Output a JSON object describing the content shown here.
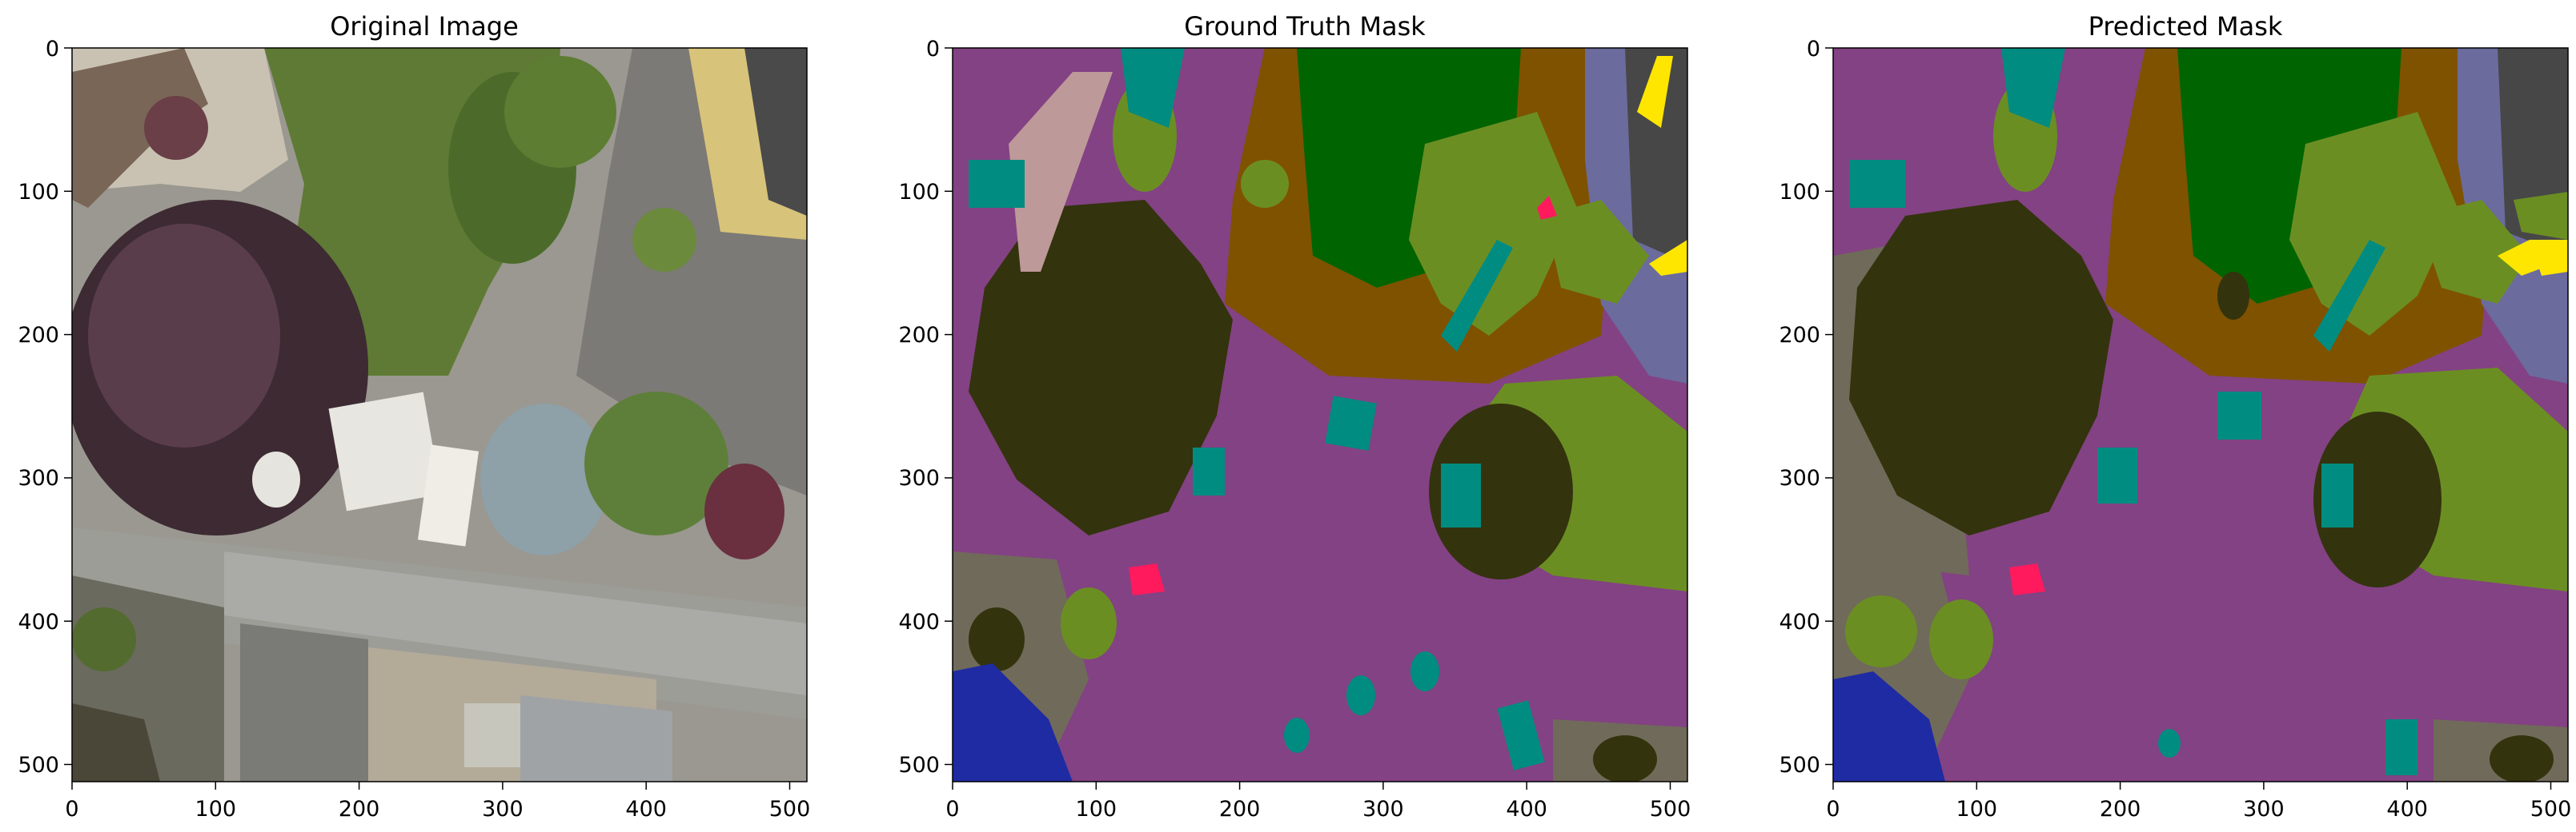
{
  "panels": [
    {
      "title": "Original Image"
    },
    {
      "title": "Ground Truth Mask"
    },
    {
      "title": "Predicted Mask"
    }
  ],
  "axes": {
    "x_ticks": [
      "0",
      "100",
      "200",
      "300",
      "400",
      "500"
    ],
    "y_ticks": [
      "0",
      "100",
      "200",
      "300",
      "400",
      "500"
    ],
    "x_tick_values": [
      0,
      100,
      200,
      300,
      400,
      500
    ],
    "y_tick_values": [
      0,
      100,
      200,
      300,
      400,
      500
    ],
    "image_extent": [
      0,
      512
    ]
  },
  "colors": {
    "paved_area": "#834283",
    "vegetation": "#6b8e23",
    "tree": "#33330d",
    "grass": "#006400",
    "dirt": "#7f5200",
    "gravel": "#706a5a",
    "roof": "#474747",
    "wall": "#6b6b9e",
    "water": "#1f2ba3",
    "rocks": "#008c80",
    "window": "#ffe600",
    "fence": "#be9999",
    "person": "#ff1a5e"
  }
}
